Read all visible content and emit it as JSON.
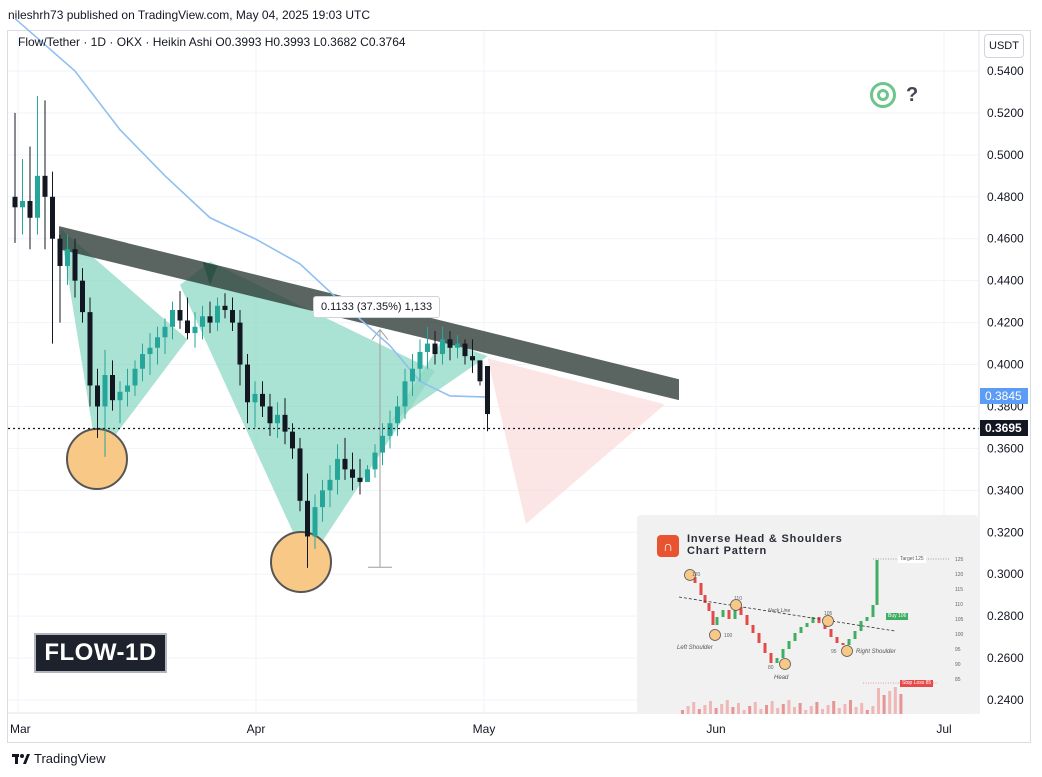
{
  "header": {
    "publisher": "nileshrh73 published on TradingView.com, May 04, 2025 19:03 UTC"
  },
  "symbol": {
    "line": "Flow/Tether · 1D · OKX · Heikin Ashi  O0.3993  H0.3993  L0.3682  C0.3764"
  },
  "currency_button": "USDT",
  "badge": "FLOW-1D",
  "measure": {
    "label": "0.1133 (37.35%) 1,133"
  },
  "price_tags": {
    "ma": "0.3845",
    "last": "0.3695"
  },
  "footer": {
    "brand": "TradingView"
  },
  "colors": {
    "up": "#26a69a",
    "down": "#131722",
    "ma": "#90bff0",
    "pattern_fill": "#8ed8c4",
    "neckline": "#2b3a35",
    "target_zone": "#fbdcdc",
    "circle": "#f8c887"
  },
  "chart_data": {
    "type": "candlestick",
    "ylim": [
      0.23,
      0.555
    ],
    "yticks": [
      "0.5400",
      "0.5200",
      "0.5000",
      "0.4800",
      "0.4600",
      "0.4400",
      "0.4200",
      "0.4000",
      "0.3800",
      "0.3600",
      "0.3400",
      "0.3200",
      "0.3000",
      "0.2800",
      "0.2600",
      "0.2400"
    ],
    "xticks": [
      "Mar",
      "Apr",
      "May",
      "Jun",
      "Jul"
    ],
    "candles": [
      [
        0.48,
        0.52,
        0.458,
        0.475
      ],
      [
        0.475,
        0.498,
        0.462,
        0.478
      ],
      [
        0.478,
        0.504,
        0.455,
        0.47
      ],
      [
        0.47,
        0.528,
        0.462,
        0.49
      ],
      [
        0.49,
        0.526,
        0.455,
        0.48
      ],
      [
        0.48,
        0.492,
        0.41,
        0.46
      ],
      [
        0.46,
        0.462,
        0.42,
        0.447
      ],
      [
        0.447,
        0.462,
        0.438,
        0.455
      ],
      [
        0.455,
        0.46,
        0.432,
        0.44
      ],
      [
        0.44,
        0.446,
        0.42,
        0.425
      ],
      [
        0.425,
        0.432,
        0.38,
        0.39
      ],
      [
        0.39,
        0.398,
        0.365,
        0.38
      ],
      [
        0.38,
        0.407,
        0.356,
        0.395
      ],
      [
        0.395,
        0.402,
        0.378,
        0.383
      ],
      [
        0.383,
        0.392,
        0.372,
        0.387
      ],
      [
        0.387,
        0.398,
        0.38,
        0.39
      ],
      [
        0.39,
        0.402,
        0.385,
        0.398
      ],
      [
        0.398,
        0.41,
        0.392,
        0.405
      ],
      [
        0.405,
        0.415,
        0.395,
        0.408
      ],
      [
        0.408,
        0.418,
        0.4,
        0.413
      ],
      [
        0.413,
        0.422,
        0.405,
        0.418
      ],
      [
        0.418,
        0.43,
        0.412,
        0.426
      ],
      [
        0.426,
        0.435,
        0.417,
        0.421
      ],
      [
        0.421,
        0.432,
        0.412,
        0.415
      ],
      [
        0.415,
        0.425,
        0.408,
        0.418
      ],
      [
        0.418,
        0.428,
        0.412,
        0.423
      ],
      [
        0.423,
        0.43,
        0.415,
        0.42
      ],
      [
        0.42,
        0.432,
        0.416,
        0.428
      ],
      [
        0.428,
        0.434,
        0.422,
        0.426
      ],
      [
        0.426,
        0.432,
        0.416,
        0.42
      ],
      [
        0.42,
        0.426,
        0.39,
        0.4
      ],
      [
        0.4,
        0.405,
        0.372,
        0.382
      ],
      [
        0.382,
        0.392,
        0.37,
        0.386
      ],
      [
        0.386,
        0.392,
        0.375,
        0.38
      ],
      [
        0.38,
        0.386,
        0.366,
        0.372
      ],
      [
        0.372,
        0.382,
        0.365,
        0.376
      ],
      [
        0.376,
        0.384,
        0.362,
        0.368
      ],
      [
        0.368,
        0.372,
        0.355,
        0.36
      ],
      [
        0.36,
        0.365,
        0.33,
        0.335
      ],
      [
        0.335,
        0.348,
        0.303,
        0.318
      ],
      [
        0.318,
        0.338,
        0.312,
        0.332
      ],
      [
        0.332,
        0.345,
        0.325,
        0.34
      ],
      [
        0.34,
        0.352,
        0.332,
        0.345
      ],
      [
        0.345,
        0.362,
        0.338,
        0.355
      ],
      [
        0.355,
        0.365,
        0.345,
        0.35
      ],
      [
        0.35,
        0.358,
        0.34,
        0.346
      ],
      [
        0.346,
        0.355,
        0.338,
        0.344
      ],
      [
        0.344,
        0.352,
        0.345,
        0.35
      ],
      [
        0.35,
        0.362,
        0.346,
        0.358
      ],
      [
        0.358,
        0.372,
        0.352,
        0.366
      ],
      [
        0.366,
        0.378,
        0.36,
        0.372
      ],
      [
        0.372,
        0.385,
        0.366,
        0.38
      ],
      [
        0.38,
        0.398,
        0.374,
        0.392
      ],
      [
        0.392,
        0.405,
        0.385,
        0.398
      ],
      [
        0.398,
        0.412,
        0.392,
        0.406
      ],
      [
        0.406,
        0.418,
        0.398,
        0.41
      ],
      [
        0.41,
        0.416,
        0.4,
        0.405
      ],
      [
        0.405,
        0.418,
        0.4,
        0.412
      ],
      [
        0.412,
        0.416,
        0.402,
        0.408
      ],
      [
        0.408,
        0.414,
        0.403,
        0.41
      ],
      [
        0.41,
        0.412,
        0.4,
        0.404
      ],
      [
        0.404,
        0.412,
        0.396,
        0.402
      ],
      [
        0.402,
        0.402,
        0.39,
        0.392
      ],
      [
        0.3993,
        0.3993,
        0.3682,
        0.3764
      ]
    ],
    "moving_average": [
      [
        0,
        0.565
      ],
      [
        8,
        0.54
      ],
      [
        14,
        0.512
      ],
      [
        20,
        0.49
      ],
      [
        26,
        0.47
      ],
      [
        32,
        0.46
      ],
      [
        38,
        0.448
      ],
      [
        44,
        0.428
      ],
      [
        50,
        0.409
      ],
      [
        54,
        0.392
      ],
      [
        58,
        0.385
      ],
      [
        63,
        0.3845
      ]
    ],
    "annotations": {
      "neckline": [
        [
          0,
          0.466
        ],
        [
          80,
          0.393
        ]
      ],
      "target_range": [
        0.3033,
        0.4166
      ]
    }
  },
  "inset": {
    "title_line1": "Inverse Head & Shoulders",
    "title_line2": "Chart Pattern",
    "labels": {
      "left_shoulder": "Left Shoulder",
      "head": "Head",
      "right_shoulder": "Right Shoulder",
      "neck_line": "Neck Line"
    },
    "tags": {
      "target": "Target 125",
      "buy": "Buy 106",
      "stop": "Stop Loss 85"
    },
    "points": [
      "120",
      "110",
      "100",
      "80",
      "105",
      "95"
    ],
    "y_ticks": [
      "125",
      "120",
      "115",
      "110",
      "105",
      "100",
      "95",
      "90",
      "85"
    ]
  }
}
